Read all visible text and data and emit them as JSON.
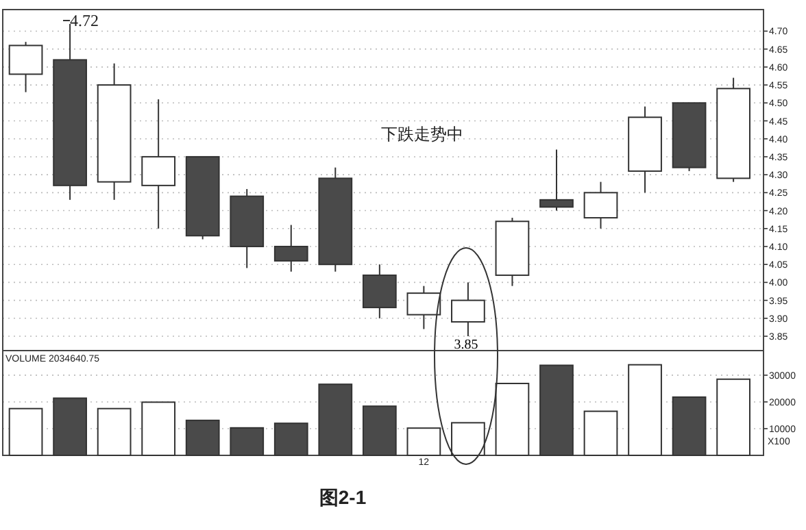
{
  "chart_data": [
    {
      "type": "candlestick",
      "categories": [
        null,
        null,
        null,
        null,
        null,
        null,
        null,
        null,
        null,
        null,
        null,
        null,
        null,
        null,
        null,
        null,
        null
      ],
      "ohlc": [
        [
          4.58,
          4.67,
          4.53,
          4.66
        ],
        [
          4.62,
          4.72,
          4.23,
          4.27
        ],
        [
          4.28,
          4.61,
          4.23,
          4.55
        ],
        [
          4.27,
          4.51,
          4.15,
          4.35
        ],
        [
          4.35,
          4.35,
          4.12,
          4.13
        ],
        [
          4.24,
          4.26,
          4.04,
          4.1
        ],
        [
          4.1,
          4.16,
          4.03,
          4.06
        ],
        [
          4.29,
          4.32,
          4.03,
          4.05
        ],
        [
          4.02,
          4.05,
          3.9,
          3.93
        ],
        [
          3.91,
          3.99,
          3.87,
          3.97
        ],
        [
          3.89,
          4.0,
          3.85,
          3.95
        ],
        [
          4.02,
          4.18,
          3.99,
          4.17
        ],
        [
          4.23,
          4.37,
          4.2,
          4.21
        ],
        [
          4.18,
          4.28,
          4.15,
          4.25
        ],
        [
          4.31,
          4.49,
          4.25,
          4.46
        ],
        [
          4.5,
          4.5,
          4.31,
          4.32
        ],
        [
          4.29,
          4.57,
          4.28,
          4.54
        ]
      ],
      "ylim": [
        3.81,
        4.76
      ],
      "yticks": [
        {
          "value": 3.85,
          "label": "3.85"
        },
        {
          "value": 3.9,
          "label": "3.90"
        },
        {
          "value": 3.95,
          "label": "3.95"
        },
        {
          "value": 4.0,
          "label": "4.00"
        },
        {
          "value": 4.05,
          "label": "4.05"
        },
        {
          "value": 4.1,
          "label": "4.10"
        },
        {
          "value": 4.15,
          "label": "4.15"
        },
        {
          "value": 4.2,
          "label": "4.20"
        },
        {
          "value": 4.25,
          "label": "4.25"
        },
        {
          "value": 4.3,
          "label": "4.30"
        },
        {
          "value": 4.35,
          "label": "4.35"
        },
        {
          "value": 4.4,
          "label": "4.40"
        },
        {
          "value": 4.45,
          "label": "4.45"
        },
        {
          "value": 4.5,
          "label": "4.50"
        },
        {
          "value": 4.55,
          "label": "4.55"
        },
        {
          "value": 4.6,
          "label": "4.60"
        },
        {
          "value": 4.65,
          "label": "4.65"
        },
        {
          "value": 4.7,
          "label": "4.70"
        }
      ],
      "grid": "y",
      "tick_labels": "y",
      "annotations": [
        "4.72",
        "3.85",
        "下跌走势中"
      ]
    },
    {
      "type": "bar",
      "categories": [
        null,
        null,
        null,
        null,
        null,
        null,
        null,
        null,
        null,
        "12",
        null,
        null,
        null,
        null,
        null,
        null,
        null
      ],
      "values": [
        17500,
        21400,
        17500,
        19900,
        13100,
        10300,
        12000,
        26600,
        18400,
        10200,
        12200,
        26900,
        33700,
        16500,
        33900,
        21800,
        28500
      ],
      "colors": [
        "#ffffff",
        "#4a4a4a",
        "#ffffff",
        "#ffffff",
        "#4a4a4a",
        "#4a4a4a",
        "#4a4a4a",
        "#4a4a4a",
        "#4a4a4a",
        "#ffffff",
        "#ffffff",
        "#ffffff",
        "#4a4a4a",
        "#ffffff",
        "#ffffff",
        "#4a4a4a",
        "#ffffff"
      ],
      "ylim": [
        0,
        39200
      ],
      "yticks": [
        10000,
        20000,
        30000
      ],
      "grid": "y",
      "annotations": [
        "VOLUME 2034640.75",
        "X100",
        "图2-1"
      ]
    }
  ]
}
